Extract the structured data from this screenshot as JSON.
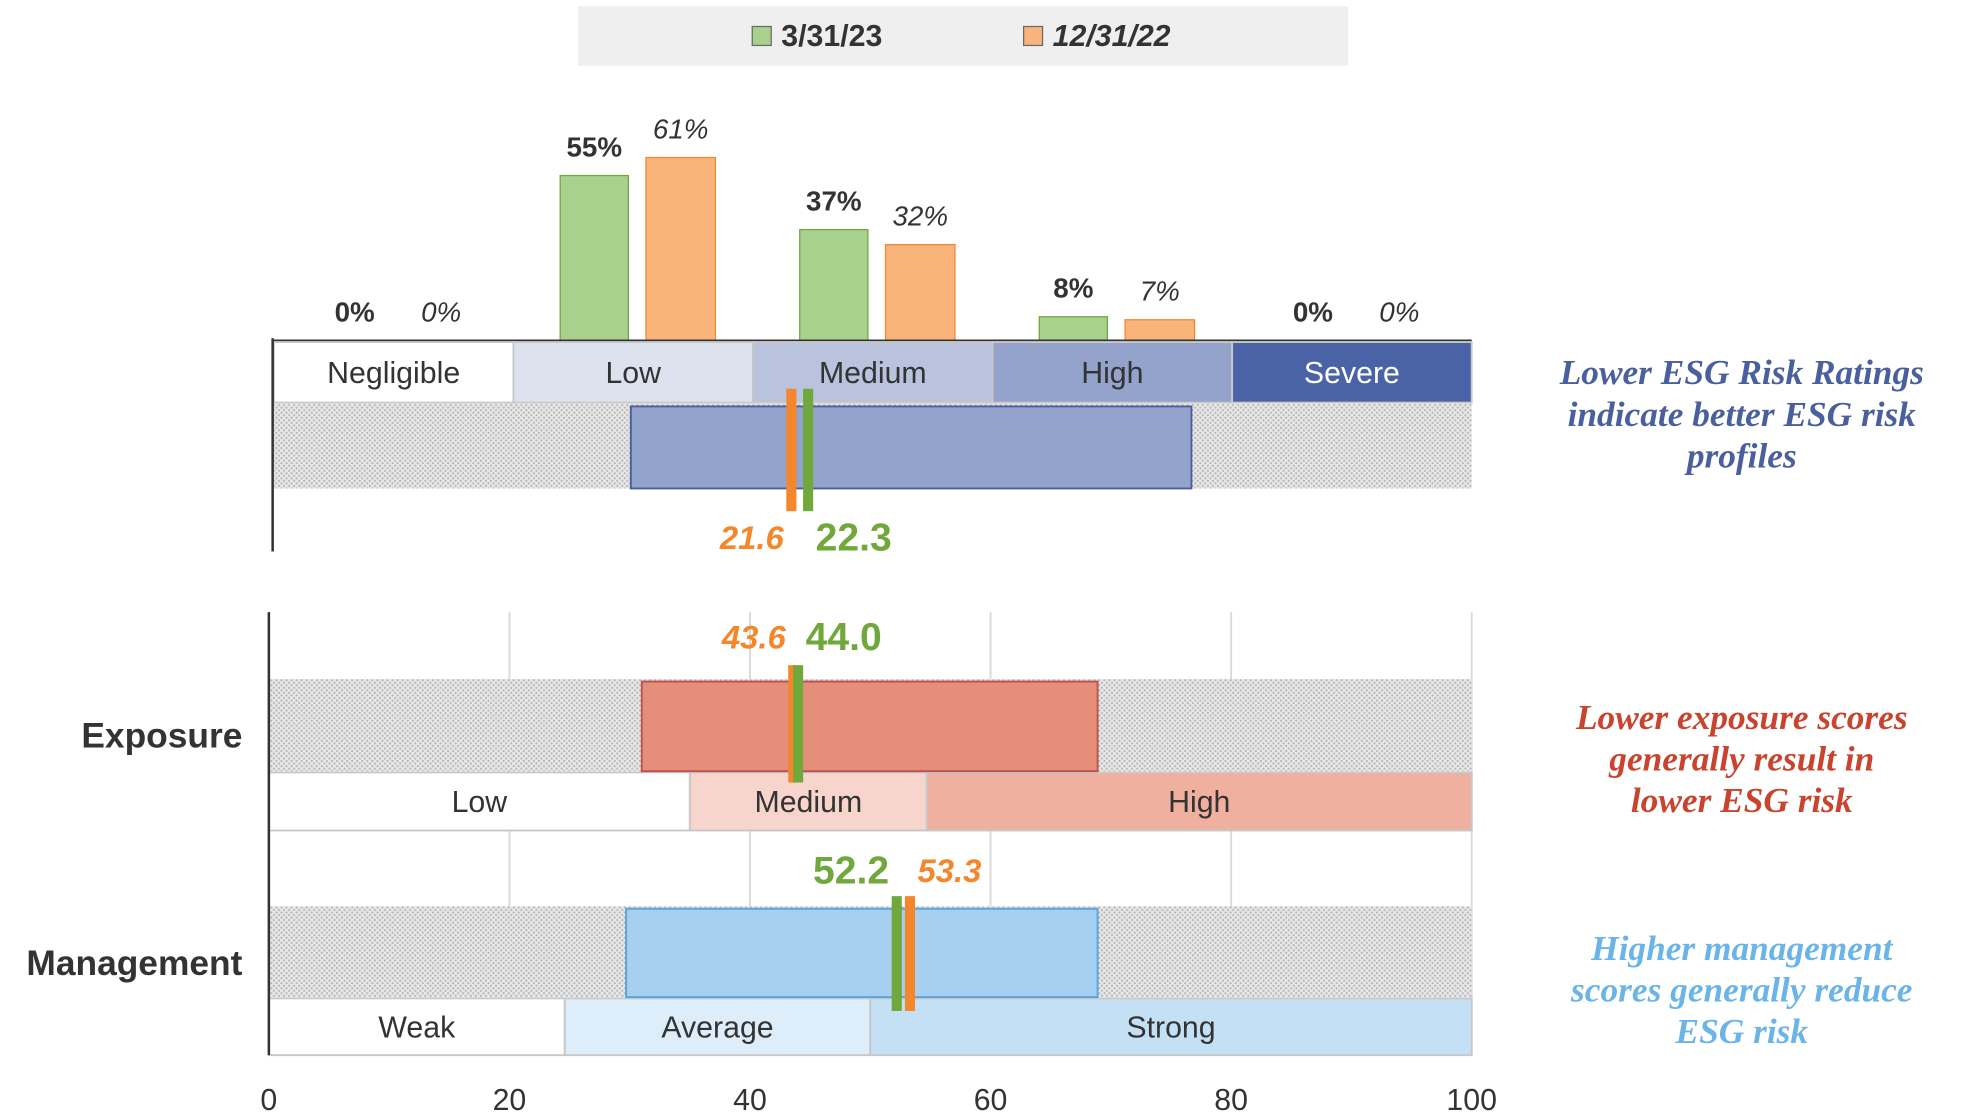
{
  "chart_data": [
    {
      "type": "bar",
      "categories": [
        "Negligible",
        "Low",
        "Medium",
        "High",
        "Severe"
      ],
      "series": [
        {
          "name": "3/31/23",
          "color": "#a9d18e",
          "marker_color": "#70a83b",
          "values": [
            0,
            55,
            37,
            8,
            0
          ],
          "value_labels": [
            "0%",
            "55%",
            "37%",
            "8%",
            "0%"
          ]
        },
        {
          "name": "12/31/22",
          "color": "#f9b47c",
          "marker_color": "#f4862c",
          "values": [
            0,
            61,
            32,
            7,
            0
          ],
          "value_labels": [
            "0%",
            "61%",
            "32%",
            "7%",
            "0%"
          ]
        }
      ],
      "ylim": [
        0,
        100
      ],
      "legend": "top"
    },
    {
      "type": "range",
      "xlim": [
        0,
        50
      ],
      "bands": [
        {
          "label": "Negligible",
          "from": 0,
          "to": 10,
          "color": "#ffffff"
        },
        {
          "label": "Low",
          "from": 10,
          "to": 20,
          "color": "#dde2ef"
        },
        {
          "label": "Medium",
          "from": 20,
          "to": 30,
          "color": "#b9c3de"
        },
        {
          "label": "High",
          "from": 30,
          "to": 40,
          "color": "#94a3cc"
        },
        {
          "label": "Severe",
          "from": 40,
          "to": 50,
          "color": "#4a62a6"
        }
      ],
      "range": [
        14.9,
        38.3
      ],
      "range_color": "#94a3cc",
      "range_stroke": "#4a5f9e",
      "markers": [
        {
          "series": 1,
          "value": 21.6
        },
        {
          "series": 0,
          "value": 22.3
        }
      ],
      "note": [
        "Lower ESG Risk Ratings",
        "indicate better ESG risk",
        "profiles"
      ],
      "note_color": "#4a5f9e"
    },
    {
      "type": "range",
      "label": "Exposure",
      "xlim": [
        0,
        100
      ],
      "xticks": [
        0,
        20,
        40,
        60,
        80,
        100
      ],
      "grid": true,
      "bands": [
        {
          "label": "Low",
          "from": 0,
          "to": 35,
          "color": "#ffffff"
        },
        {
          "label": "Medium",
          "from": 35,
          "to": 54.7,
          "color": "#f7d5cc"
        },
        {
          "label": "High",
          "from": 54.7,
          "to": 100,
          "color": "#f0b0a0"
        }
      ],
      "range": [
        31,
        68.9
      ],
      "range_color": "#e58f7a",
      "range_stroke": "#c0504d",
      "markers": [
        {
          "series": 1,
          "value": 43.6
        },
        {
          "series": 0,
          "value": {
            "value": 44.0,
            "label": "44.0"
          }
        }
      ],
      "note": [
        "Lower exposure scores",
        "generally result in",
        "lower ESG risk"
      ],
      "note_color": "#c9442e"
    },
    {
      "type": "range",
      "label": "Management",
      "xlim": [
        0,
        100
      ],
      "xticks": [
        0,
        20,
        40,
        60,
        80,
        100
      ],
      "grid": true,
      "bands": [
        {
          "label": "Weak",
          "from": 0,
          "to": 24.6,
          "color": "#ffffff"
        },
        {
          "label": "Average",
          "from": 24.6,
          "to": 50,
          "color": "#ddeefa"
        },
        {
          "label": "Strong",
          "from": 50,
          "to": 100,
          "color": "#c4e0f5"
        }
      ],
      "range": [
        29.7,
        68.9
      ],
      "range_color": "#a6cff0",
      "range_stroke": "#5ba3d9",
      "markers": [
        {
          "series": 0,
          "value": 52.2
        },
        {
          "series": 1,
          "value": 53.3
        }
      ],
      "note": [
        "Higher management",
        "scores generally reduce",
        "ESG risk"
      ],
      "note_color": "#6ab4e8"
    }
  ]
}
